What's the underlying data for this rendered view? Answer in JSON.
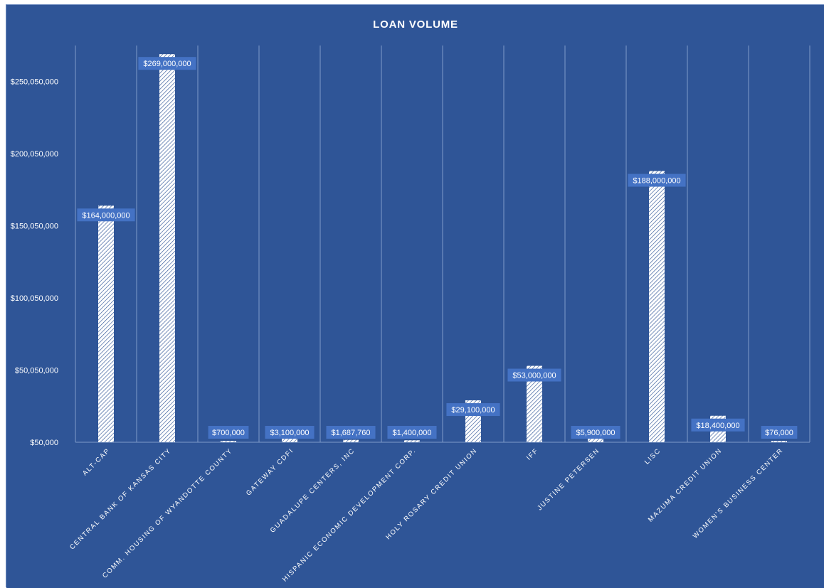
{
  "colors": {
    "background": "#2f5597",
    "gridline": "#7f9bca",
    "bar_fill": "#ffffff",
    "bar_hatch": "#2f5597",
    "label_box": "#4472c4",
    "text": "#ffffff"
  },
  "chart_data": {
    "type": "bar",
    "title": "LOAN VOLUME",
    "xlabel": "",
    "ylabel": "",
    "ylim": [
      50000,
      275000000
    ],
    "yticks": [
      50000,
      50050000,
      100050000,
      150050000,
      200050000,
      250050000
    ],
    "ytick_labels": [
      "$50,000",
      "$50,050,000",
      "$100,050,000",
      "$150,050,000",
      "$200,050,000",
      "$250,050,000"
    ],
    "grid": "vertical",
    "legend": "none",
    "bar_pattern": "diagonal-hatch",
    "categories": [
      "ALT-CAP",
      "CENTRAL BANK OF KANSAS CITY",
      "COMM. HOUSING OF WYANDOTTE COUNTY",
      "GATEWAY CDFI",
      "GUADALUPE CENTERS, INC",
      "HISPANIC ECONOMIC DEVELOPMENT CORP.",
      "HOLY ROSARY CREDIT UNION",
      "IFF",
      "JUSTINE PETERSEN",
      "LISC",
      "MAZUMA CREDIT UNION",
      "WOMEN'S BUSINESS CENTER"
    ],
    "values": [
      164000000,
      269000000,
      700000,
      3100000,
      1687760,
      1400000,
      29100000,
      53000000,
      5900000,
      188000000,
      18400000,
      76000
    ],
    "data_labels": [
      "$164,000,000",
      "$269,000,000",
      "$700,000",
      "$3,100,000",
      "$1,687,760",
      "$1,400,000",
      "$29,100,000",
      "$53,000,000",
      "$5,900,000",
      "$188,000,000",
      "$18,400,000",
      "$76,000"
    ]
  }
}
